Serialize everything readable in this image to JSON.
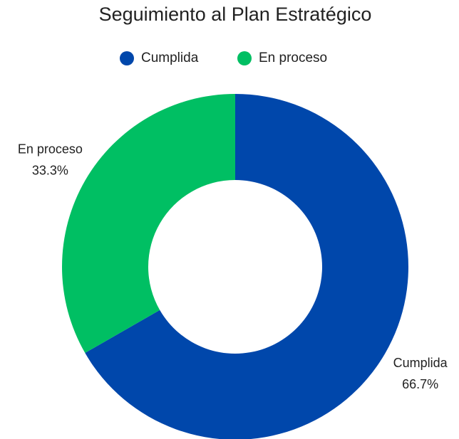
{
  "chart_data": {
    "type": "donut",
    "title": "Seguimiento al Plan Estratégico",
    "categories": [
      "Cumplida",
      "En proceso"
    ],
    "values": [
      66.7,
      33.3
    ],
    "value_labels": [
      "66.7%",
      "33.3%"
    ],
    "colors": [
      "#0047ab",
      "#00bf63"
    ],
    "legend": "top"
  }
}
